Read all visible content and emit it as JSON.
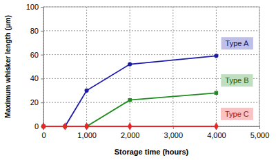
{
  "chart_data": {
    "type": "line",
    "x_label": "Storage time (hours)",
    "y_label": "Maximum whisker length (µm)",
    "x": [
      0,
      500,
      1000,
      2000,
      4000
    ],
    "series": [
      {
        "name": "Type A",
        "color": "#1c1ca8",
        "marker": "circle",
        "values": [
          0,
          0,
          30,
          52,
          59
        ]
      },
      {
        "name": "Type B",
        "color": "#1e8c1e",
        "marker": "square",
        "values": [
          0,
          0,
          0,
          22,
          28
        ]
      },
      {
        "name": "Type C",
        "color": "#e8262a",
        "marker": "diamond",
        "values": [
          0,
          0,
          0,
          0,
          0
        ]
      }
    ],
    "xlim": [
      0,
      5000
    ],
    "xticks": [
      0,
      {
        "value": 1000,
        "label": "1,000"
      },
      {
        "value": 2000,
        "label": "2,000"
      },
      {
        "value": 3000,
        "label": "3,000"
      },
      {
        "value": 4000,
        "label": "4,000"
      },
      {
        "value": 5000,
        "label": "5,000"
      }
    ],
    "ylim": [
      0,
      100
    ],
    "yticks": [
      0,
      20,
      40,
      60,
      80,
      100
    ],
    "grid": true
  }
}
